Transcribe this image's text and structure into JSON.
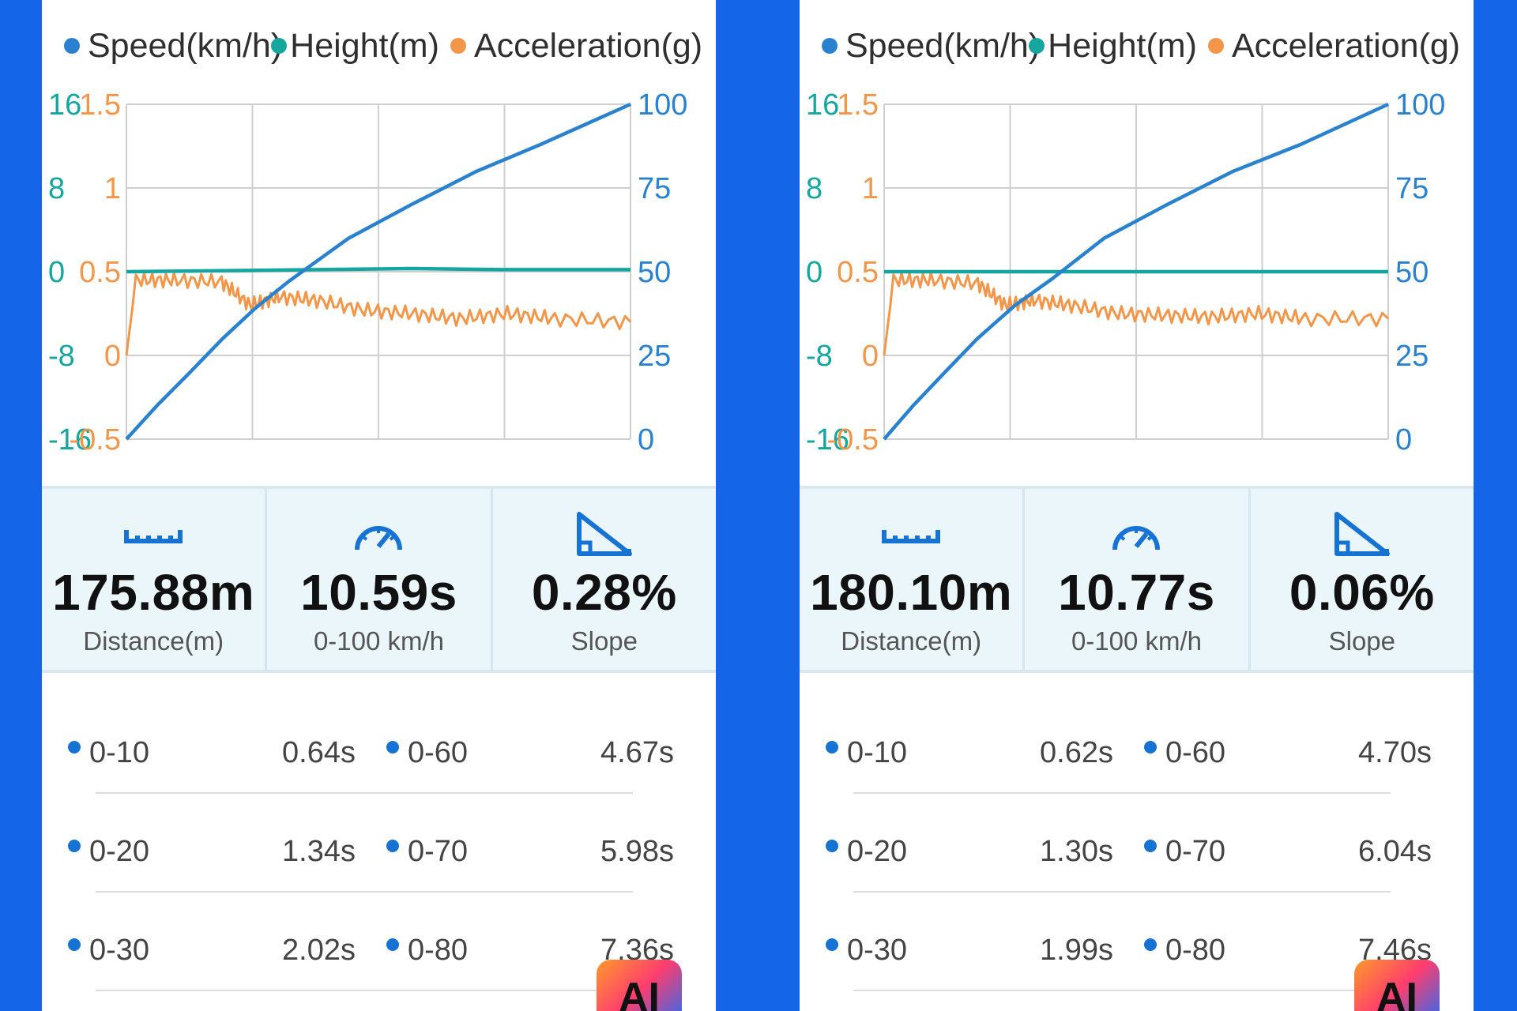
{
  "colors": {
    "speed": "#2a82cf",
    "height": "#16a6a0",
    "acceleration": "#f2964a",
    "accent_blue": "#1673d4",
    "frame_blue": "#1565e8"
  },
  "legend": {
    "speed": "Speed(km/h)",
    "height": "Height(m)",
    "acceleration": "Acceleration(g)"
  },
  "panels": [
    {
      "axes": {
        "height_ticks": [
          "16",
          "8",
          "0",
          "-8",
          "-16"
        ],
        "accel_ticks": [
          "1.5",
          "1",
          "0.5",
          "0",
          "-0.5"
        ],
        "speed_ticks": [
          "100",
          "75",
          "50",
          "25",
          "0"
        ]
      },
      "stats": [
        {
          "icon": "ruler-icon",
          "value": "175.88m",
          "label": "Distance(m)"
        },
        {
          "icon": "speedometer-icon",
          "value": "10.59s",
          "label": "0-100 km/h"
        },
        {
          "icon": "slope-icon",
          "value": "0.28%",
          "label": "Slope"
        }
      ],
      "splits": [
        {
          "a_label": "0-10",
          "a_value": "0.64s",
          "b_label": "0-60",
          "b_value": "4.67s"
        },
        {
          "a_label": "0-20",
          "a_value": "1.34s",
          "b_label": "0-70",
          "b_value": "5.98s"
        },
        {
          "a_label": "0-30",
          "a_value": "2.02s",
          "b_label": "0-80",
          "b_value": "7.36s"
        }
      ],
      "badge": "AI"
    },
    {
      "axes": {
        "height_ticks": [
          "16",
          "8",
          "0",
          "-8",
          "-16"
        ],
        "accel_ticks": [
          "1.5",
          "1",
          "0.5",
          "0",
          "-0.5"
        ],
        "speed_ticks": [
          "100",
          "75",
          "50",
          "25",
          "0"
        ]
      },
      "stats": [
        {
          "icon": "ruler-icon",
          "value": "180.10m",
          "label": "Distance(m)"
        },
        {
          "icon": "speedometer-icon",
          "value": "10.77s",
          "label": "0-100 km/h"
        },
        {
          "icon": "slope-icon",
          "value": "0.06%",
          "label": "Slope"
        }
      ],
      "splits": [
        {
          "a_label": "0-10",
          "a_value": "0.62s",
          "b_label": "0-60",
          "b_value": "4.70s"
        },
        {
          "a_label": "0-20",
          "a_value": "1.30s",
          "b_label": "0-70",
          "b_value": "6.04s"
        },
        {
          "a_label": "0-30",
          "a_value": "1.99s",
          "b_label": "0-80",
          "b_value": "7.46s"
        }
      ],
      "badge": "AI"
    }
  ],
  "chart_data": [
    {
      "type": "line",
      "xlim": [
        0,
        10.59
      ],
      "ylim_speed": [
        0,
        100
      ],
      "ylim_height": [
        -16,
        16
      ],
      "ylim_accel": [
        -0.5,
        1.5
      ],
      "grid": true,
      "legend_position": "top",
      "series": [
        {
          "name": "Speed(km/h)",
          "axis": "right",
          "x": [
            0,
            0.64,
            1.34,
            2.02,
            2.7,
            3.4,
            4.67,
            5.98,
            7.36,
            8.7,
            10.59
          ],
          "y": [
            0,
            10,
            20,
            30,
            39,
            47,
            60,
            70,
            80,
            88,
            100
          ]
        },
        {
          "name": "Height(m)",
          "axis": "left",
          "x": [
            0,
            2,
            4,
            6,
            8,
            10.59
          ],
          "y": [
            0,
            0.1,
            0.2,
            0.3,
            0.2,
            0.2
          ]
        },
        {
          "name": "Acceleration(g)",
          "axis": "acc",
          "x": [
            0,
            0.2,
            1.0,
            2.0,
            2.6,
            3.2,
            4.0,
            5.0,
            6.0,
            7.0,
            8.0,
            9.0,
            10.59
          ],
          "y": [
            0.0,
            0.45,
            0.45,
            0.44,
            0.3,
            0.35,
            0.33,
            0.27,
            0.25,
            0.22,
            0.25,
            0.22,
            0.2
          ]
        }
      ]
    },
    {
      "type": "line",
      "xlim": [
        0,
        10.77
      ],
      "ylim_speed": [
        0,
        100
      ],
      "ylim_height": [
        -16,
        16
      ],
      "ylim_accel": [
        -0.5,
        1.5
      ],
      "grid": true,
      "legend_position": "top",
      "series": [
        {
          "name": "Speed(km/h)",
          "axis": "right",
          "x": [
            0,
            0.62,
            1.3,
            1.99,
            2.8,
            3.6,
            4.7,
            6.04,
            7.46,
            8.9,
            10.77
          ],
          "y": [
            0,
            10,
            20,
            30,
            40,
            48,
            60,
            70,
            80,
            88,
            100
          ]
        },
        {
          "name": "Height(m)",
          "axis": "left",
          "x": [
            0,
            2,
            4,
            6,
            8,
            10.77
          ],
          "y": [
            0,
            0,
            0,
            0,
            0,
            0
          ]
        },
        {
          "name": "Acceleration(g)",
          "axis": "acc",
          "x": [
            0,
            0.2,
            1.0,
            2.0,
            2.6,
            3.2,
            4.0,
            5.0,
            6.0,
            7.0,
            8.0,
            9.0,
            10.77
          ],
          "y": [
            0.0,
            0.45,
            0.45,
            0.43,
            0.3,
            0.33,
            0.3,
            0.25,
            0.24,
            0.23,
            0.25,
            0.22,
            0.22
          ]
        }
      ]
    }
  ]
}
